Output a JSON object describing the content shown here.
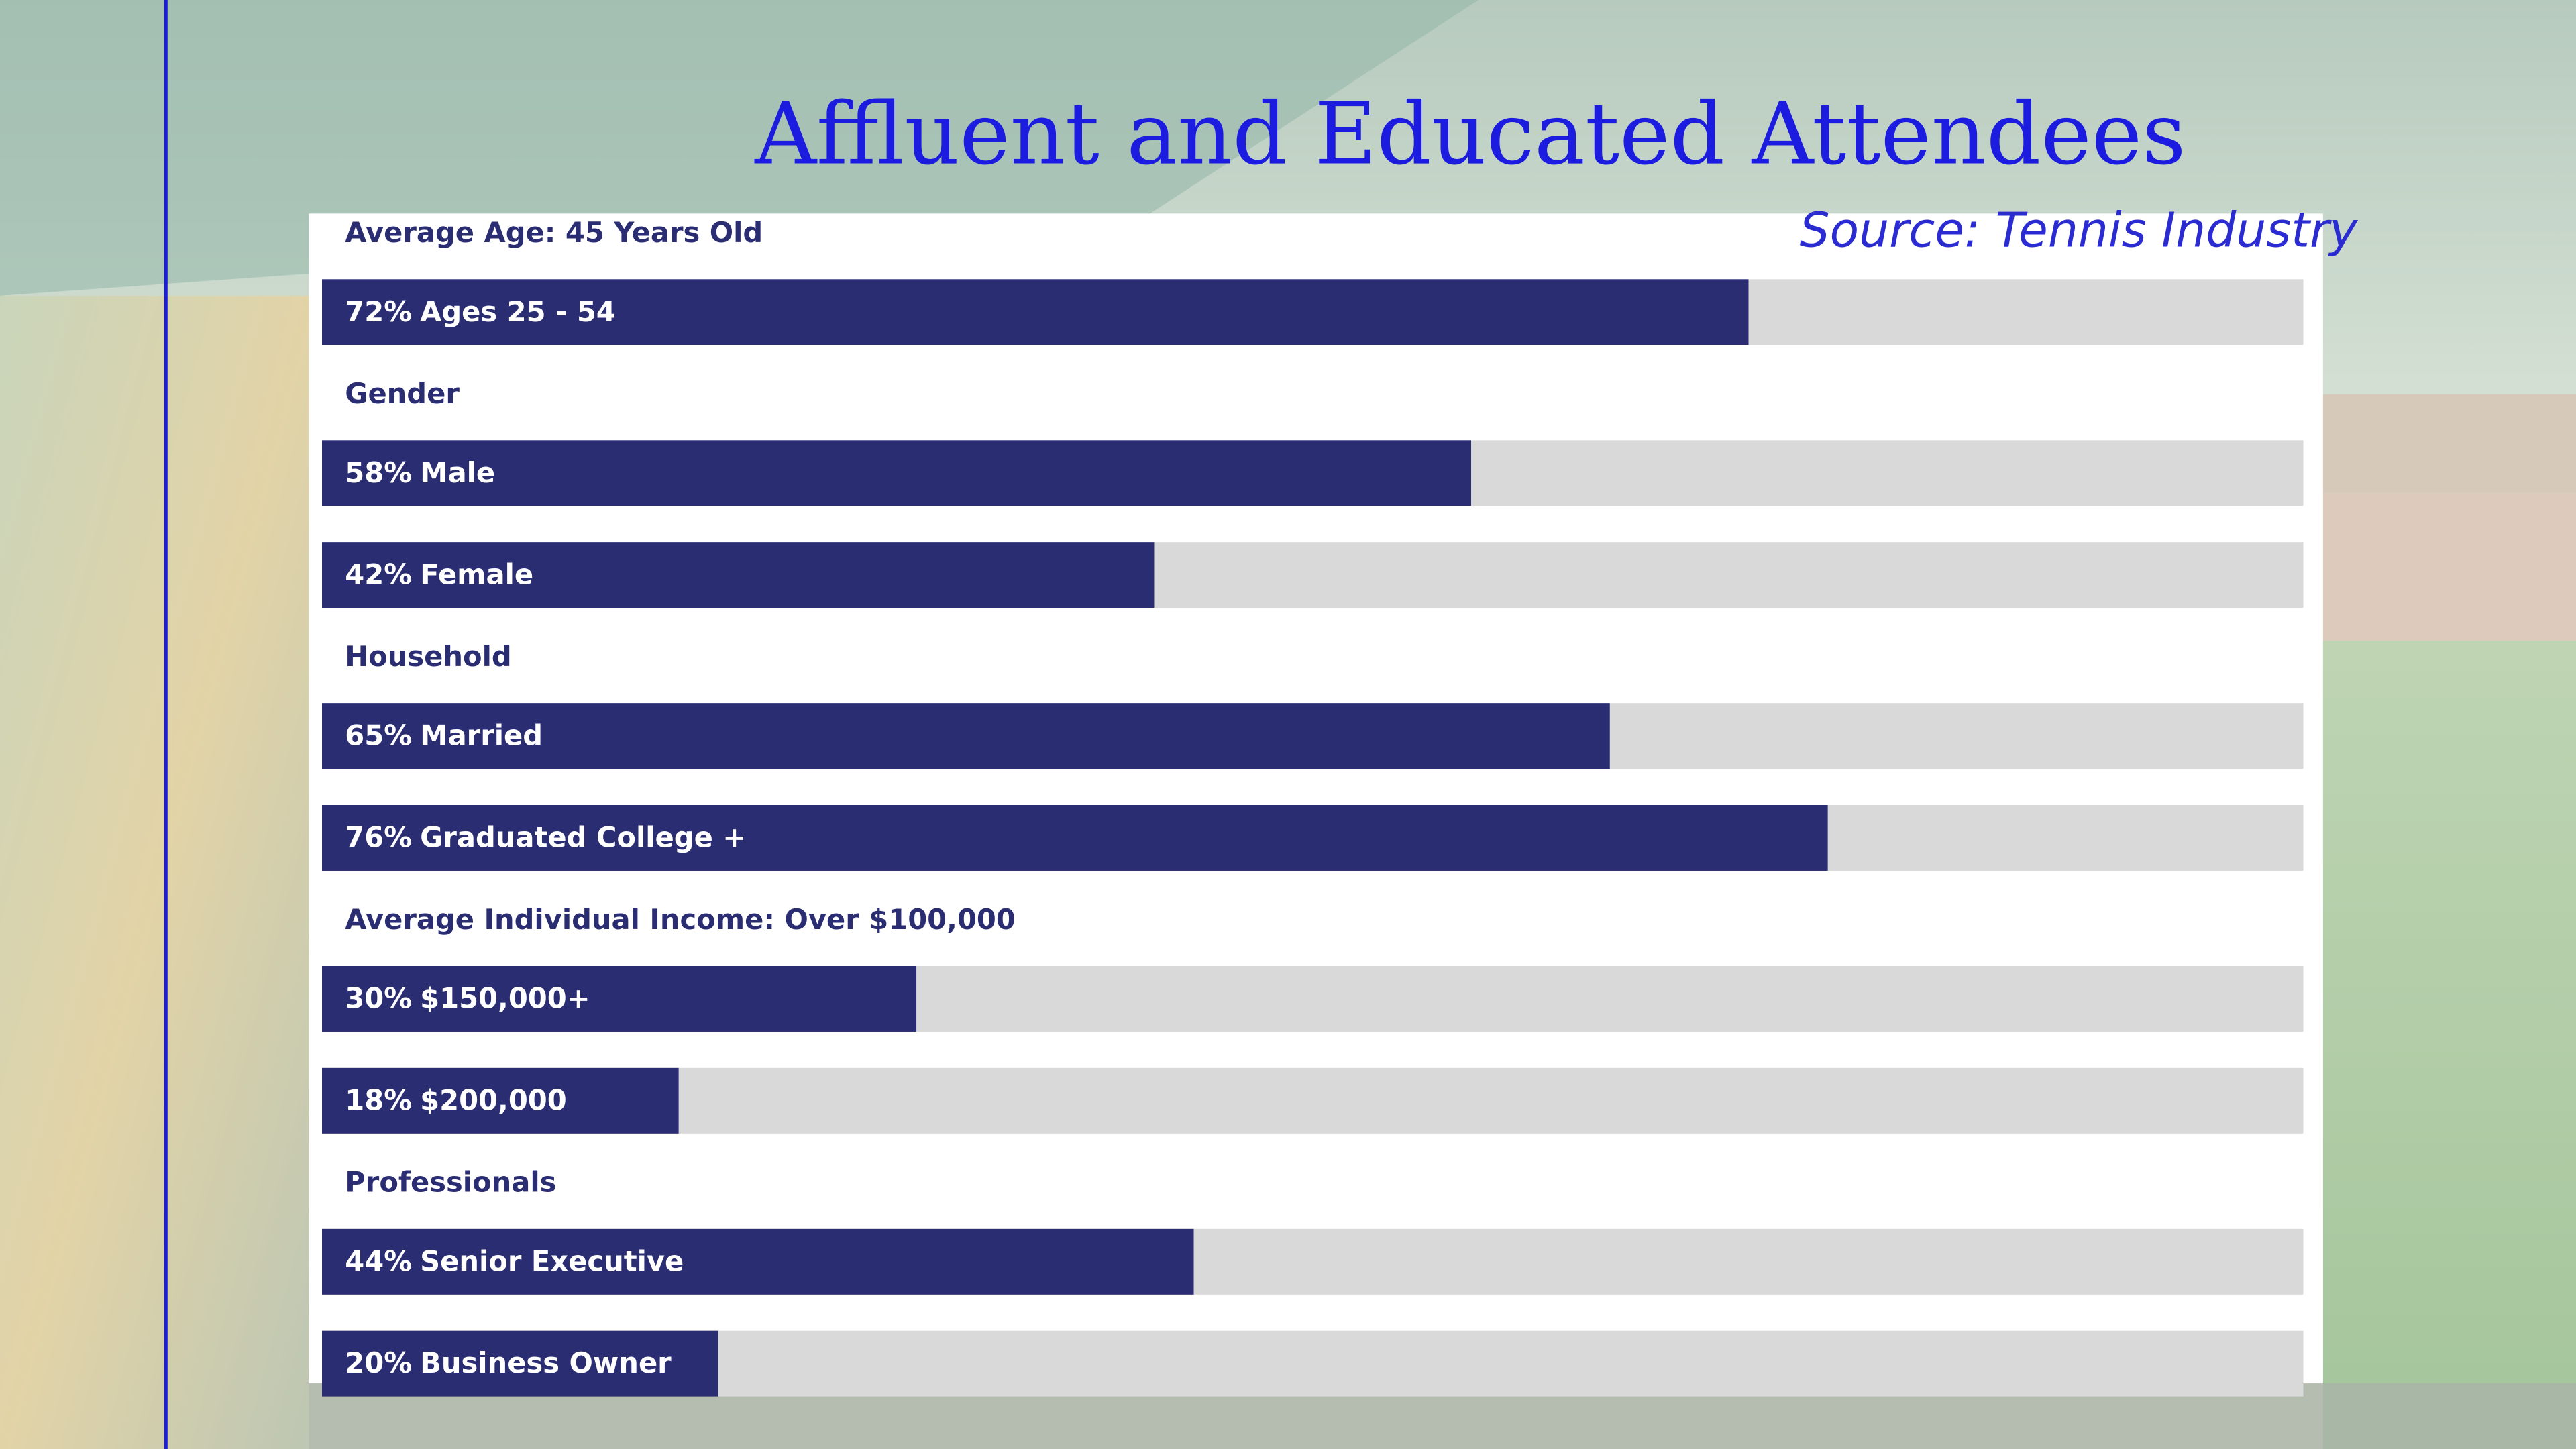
{
  "chart_data": {
    "type": "bar",
    "orientation": "horizontal",
    "title": "Affluent and Educated Attendees",
    "subtitle": "Source: Tennis Industry",
    "xlim": [
      0,
      100
    ],
    "color": "#2b2d72",
    "track_color": "#d9d9d9",
    "sections": [
      {
        "heading": "Average Age: 45 Years Old",
        "categories": [
          "Ages 25 - 54"
        ],
        "values": [
          72
        ],
        "value_labels": [
          "72%"
        ]
      },
      {
        "heading": "Gender",
        "categories": [
          "Male",
          "Female"
        ],
        "values": [
          58,
          42
        ],
        "value_labels": [
          "58%",
          "42%"
        ]
      },
      {
        "heading": "Household",
        "categories": [
          "Married",
          "Graduated College +"
        ],
        "values": [
          65,
          76
        ],
        "value_labels": [
          "65%",
          "76%"
        ]
      },
      {
        "heading": "Average Individual Income: Over $100,000",
        "categories": [
          "$150,000+",
          "$200,000"
        ],
        "values": [
          30,
          18
        ],
        "value_labels": [
          "30%",
          "18%"
        ]
      },
      {
        "heading": "Professionals",
        "categories": [
          "Senior Executive",
          "Business Owner"
        ],
        "values": [
          44,
          20
        ],
        "value_labels": [
          "44%",
          "20%"
        ]
      }
    ]
  }
}
